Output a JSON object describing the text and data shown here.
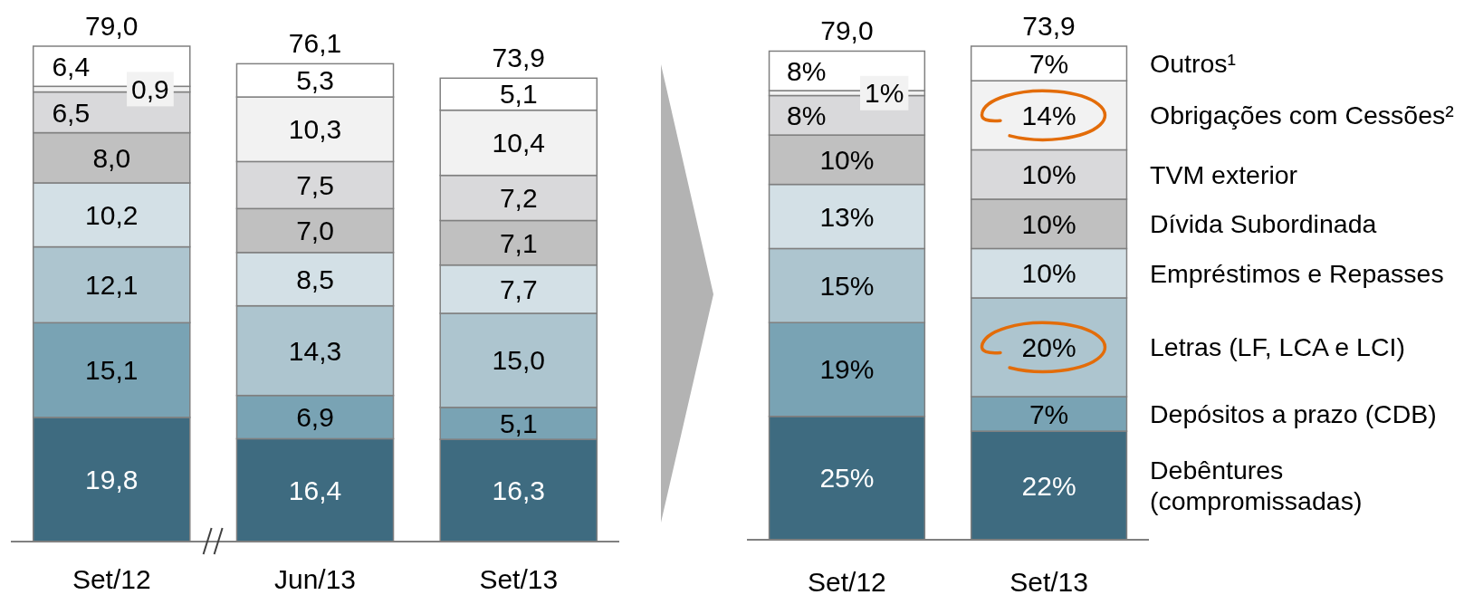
{
  "chart_data": [
    {
      "type": "bar",
      "stacked": true,
      "categories": [
        "Set/12",
        "Jun/13",
        "Set/13"
      ],
      "series": [
        {
          "color": "#3e6b80",
          "values": [
            19.8,
            16.4,
            16.3
          ],
          "value_labels": [
            "19,8",
            "16,4",
            "16,3"
          ]
        },
        {
          "color": "#79a3b4",
          "values": [
            15.1,
            6.9,
            5.1
          ],
          "value_labels": [
            "15,1",
            "6,9",
            "5,1"
          ]
        },
        {
          "color": "#adc5cf",
          "values": [
            12.1,
            14.3,
            15.0
          ],
          "value_labels": [
            "12,1",
            "14,3",
            "15,0"
          ]
        },
        {
          "color": "#d3e0e6",
          "values": [
            10.2,
            8.5,
            7.7
          ],
          "value_labels": [
            "10,2",
            "8,5",
            "7,7"
          ]
        },
        {
          "color": "#c0c0c0",
          "values": [
            8.0,
            7.0,
            7.1
          ],
          "value_labels": [
            "8,0",
            "7,0",
            "7,1"
          ]
        },
        {
          "color": "#d9d9db",
          "values": [
            6.5,
            7.5,
            7.2
          ],
          "value_labels": [
            "6,5",
            "7,5",
            "7,2"
          ]
        },
        {
          "color": "#f2f2f2",
          "values": [
            0.9,
            10.3,
            10.4
          ],
          "value_labels": [
            "0,9",
            "10,3",
            "10,4"
          ]
        },
        {
          "color": "#ffffff",
          "values": [
            6.4,
            5.3,
            5.1
          ],
          "value_labels": [
            "6,4",
            "5,3",
            "5,1"
          ]
        }
      ],
      "totals": [
        "79,0",
        "76,1",
        "73,9"
      ]
    },
    {
      "type": "bar",
      "stacked": true,
      "categories": [
        "Set/12",
        "Set/13"
      ],
      "series": [
        {
          "name": "Debêntures (compromissadas)",
          "color": "#3e6b80",
          "values": [
            25,
            22
          ],
          "value_labels": [
            "25%",
            "22%"
          ]
        },
        {
          "name": "Depósitos a prazo (CDB)",
          "color": "#79a3b4",
          "values": [
            19,
            7
          ],
          "value_labels": [
            "19%",
            "7%"
          ]
        },
        {
          "name": "Letras (LF, LCA e LCI)",
          "color": "#adc5cf",
          "values": [
            15,
            20
          ],
          "value_labels": [
            "15%",
            "20%"
          ]
        },
        {
          "name": "Empréstimos e Repasses",
          "color": "#d3e0e6",
          "values": [
            13,
            10
          ],
          "value_labels": [
            "13%",
            "10%"
          ]
        },
        {
          "name": "Dívida Subordinada",
          "color": "#c0c0c0",
          "values": [
            10,
            10
          ],
          "value_labels": [
            "10%",
            "10%"
          ]
        },
        {
          "name": "TVM exterior",
          "color": "#d9d9db",
          "values": [
            8,
            10
          ],
          "value_labels": [
            "8%",
            "10%"
          ]
        },
        {
          "name": "Obrigações com Cessões²",
          "color": "#f2f2f2",
          "values": [
            1,
            14
          ],
          "value_labels": [
            "1%",
            "14%"
          ]
        },
        {
          "name": "Outros¹",
          "color": "#ffffff",
          "values": [
            8,
            7
          ],
          "value_labels": [
            "8%",
            "7%"
          ]
        }
      ],
      "annotations": [
        {
          "text": "79,0",
          "x": "Set/12",
          "y": 99
        },
        {
          "text": "73,9",
          "x": "Set/13",
          "y": 100
        }
      ],
      "legend": "right"
    }
  ]
}
